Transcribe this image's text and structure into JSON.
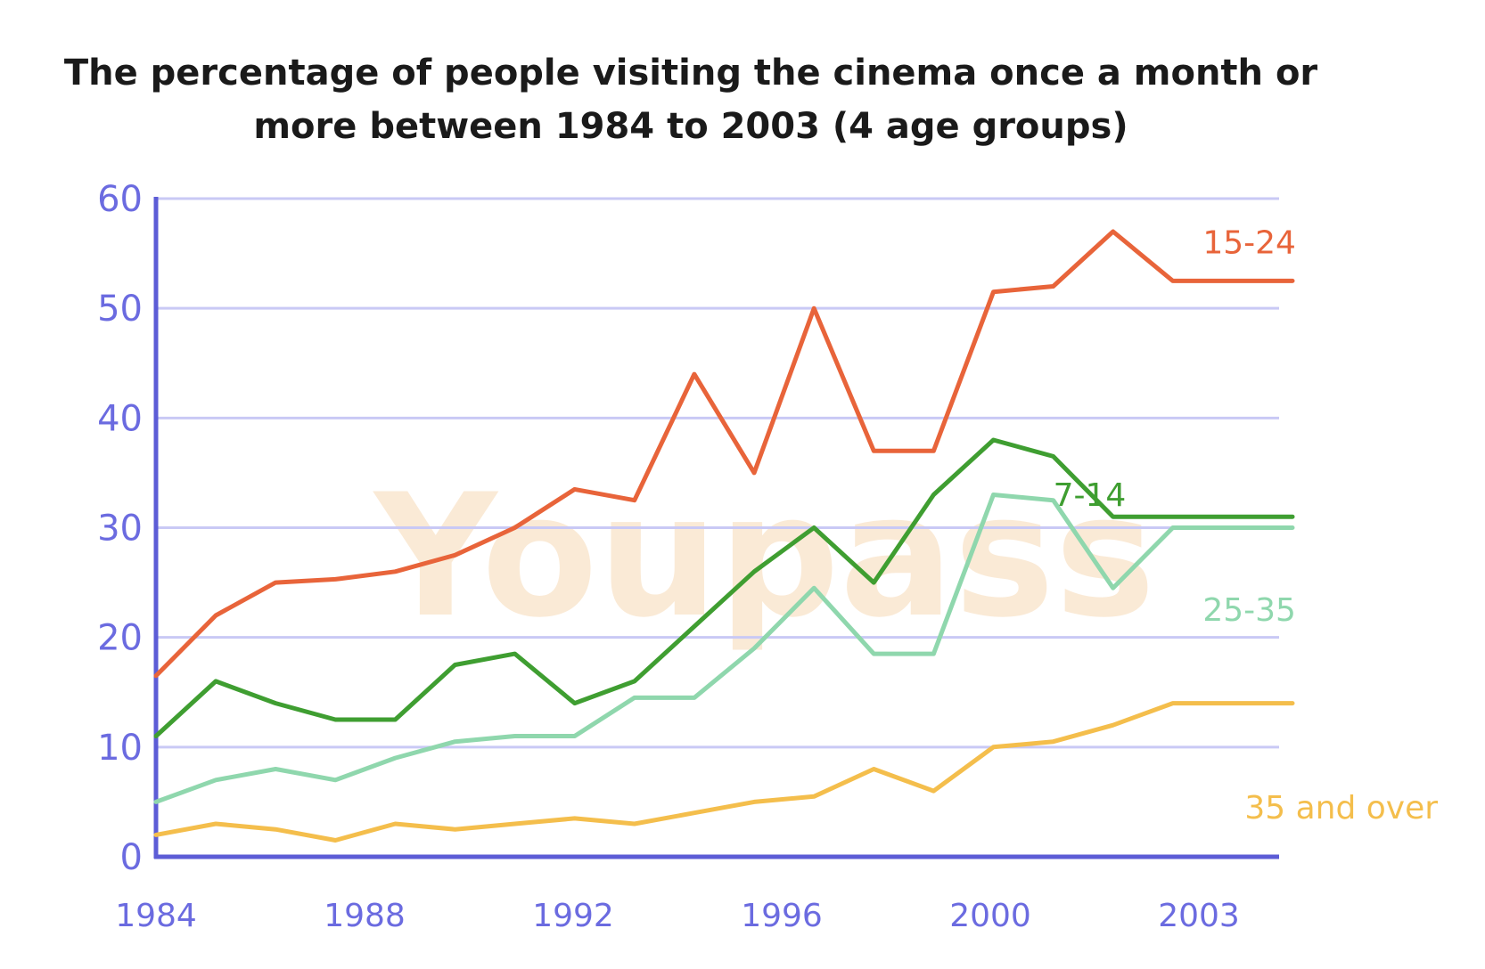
{
  "title_line1": "The percentage of people visiting the cinema once a month or",
  "title_line2": "more between 1984 to 2003 (4 age groups)",
  "watermark": "Youpass",
  "colors": {
    "axis": "#5c5cd6",
    "grid": "#c9c9f5",
    "tick_text": "#6b6be0",
    "s15_24": "#e8643a",
    "s7_14": "#3f9e31",
    "s25_35": "#8fd7ad",
    "s35_over": "#f4be4c",
    "watermark": "#f7d9b5"
  },
  "chart_data": {
    "type": "line",
    "title": "The percentage of people visiting the cinema once a month or more between 1984 to 2003 (4 age groups)",
    "xlabel": "",
    "ylabel": "",
    "ylim": [
      0,
      60
    ],
    "y_ticks": [
      0,
      10,
      20,
      30,
      40,
      50,
      60
    ],
    "x_tick_labels": [
      "1984",
      "1988",
      "1992",
      "1996",
      "2000",
      "2003"
    ],
    "grid": true,
    "series": [
      {
        "name": "15-24",
        "color_key": "s15_24",
        "x": [
          1984,
          1985,
          1986,
          1987,
          1988,
          1989,
          1990,
          1991,
          1992,
          1993,
          1994,
          1995,
          1996,
          1997,
          1998,
          1999,
          2000,
          2001,
          2002,
          2003
        ],
        "values": [
          16.5,
          22,
          25,
          25.3,
          26,
          27.5,
          30,
          33.5,
          32.5,
          44,
          35,
          50,
          37,
          37,
          51.5,
          52,
          57,
          52.5,
          52.5,
          52.5
        ],
        "label_position": [
          2001.5,
          55
        ]
      },
      {
        "name": "7-14",
        "color_key": "s7_14",
        "x": [
          1984,
          1985,
          1986,
          1987,
          1988,
          1989,
          1990,
          1991,
          1992,
          1993,
          1994,
          1995,
          1996,
          1997,
          1998,
          1999,
          2000,
          2001,
          2002,
          2003
        ],
        "values": [
          11,
          16,
          14,
          12.5,
          12.5,
          17.5,
          18.5,
          14,
          16,
          21,
          26,
          30,
          25,
          33,
          38,
          36.5,
          31,
          31,
          31,
          31
        ],
        "label_position": [
          1999,
          32
        ]
      },
      {
        "name": "25-35",
        "color_key": "s25_35",
        "x": [
          1984,
          1985,
          1986,
          1987,
          1988,
          1989,
          1990,
          1991,
          1992,
          1993,
          1994,
          1995,
          1996,
          1997,
          1998,
          1999,
          2000,
          2001,
          2002,
          2003
        ],
        "values": [
          5,
          7,
          8,
          7,
          9,
          10.5,
          11,
          11,
          14.5,
          14.5,
          19,
          24.5,
          18.5,
          18.5,
          33,
          32.5,
          24.5,
          30,
          30,
          30
        ],
        "label_position": [
          2001.5,
          21.5
        ]
      },
      {
        "name": "35 and over",
        "color_key": "s35_over",
        "x": [
          1984,
          1985,
          1986,
          1987,
          1988,
          1989,
          1990,
          1991,
          1992,
          1993,
          1994,
          1995,
          1996,
          1997,
          1998,
          1999,
          2000,
          2001,
          2002,
          2003
        ],
        "values": [
          2,
          3,
          2.5,
          1.5,
          3,
          2.5,
          3,
          3.5,
          3,
          4,
          5,
          5.5,
          8,
          6,
          10,
          10.5,
          12,
          14,
          14,
          14
        ],
        "label_position": [
          2002.2,
          3.5
        ]
      }
    ]
  }
}
